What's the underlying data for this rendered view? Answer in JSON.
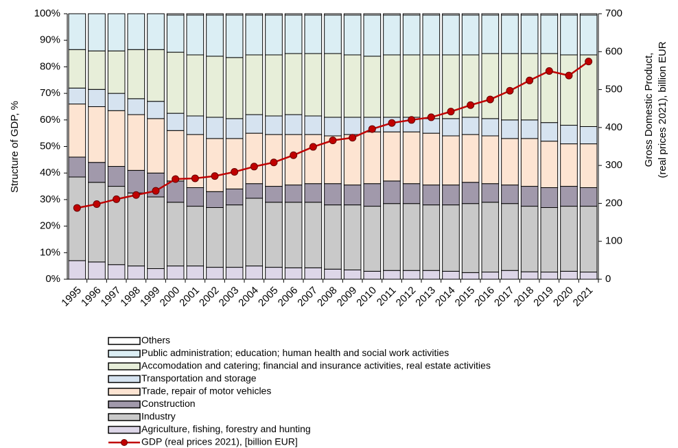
{
  "chart_data": {
    "type": "bar",
    "stacked": true,
    "ylabel": "Structure of GDP, %",
    "y2label": [
      "Gross Domestic Product,",
      "(real prices 2021), billion EUR"
    ],
    "categories": [
      "1995",
      "1996",
      "1997",
      "1998",
      "1999",
      "2000",
      "2001",
      "2002",
      "2003",
      "2004",
      "2005",
      "2006",
      "2007",
      "2008",
      "2009",
      "2010",
      "2011",
      "2012",
      "2013",
      "2014",
      "2015",
      "2016",
      "2017",
      "2018",
      "2019",
      "2020",
      "2021"
    ],
    "ylim": [
      0,
      100
    ],
    "yticks": [
      {
        "value": 0,
        "label": "0%"
      },
      {
        "value": 10,
        "label": "10%"
      },
      {
        "value": 20,
        "label": "20%"
      },
      {
        "value": 30,
        "label": "30%"
      },
      {
        "value": 40,
        "label": "40%"
      },
      {
        "value": 50,
        "label": "50%"
      },
      {
        "value": 60,
        "label": "60%"
      },
      {
        "value": 70,
        "label": "70%"
      },
      {
        "value": 80,
        "label": "80%"
      },
      {
        "value": 90,
        "label": "90%"
      },
      {
        "value": 100,
        "label": "100%"
      }
    ],
    "y2lim": [
      0,
      700
    ],
    "y2ticks": [
      0,
      100,
      200,
      300,
      400,
      500,
      600,
      700
    ],
    "series": [
      {
        "name": "Agriculture, fishing, forestry and hunting",
        "color": "#ddd6e8",
        "values": [
          7,
          6.5,
          5.5,
          5,
          4,
          5,
          5,
          4.5,
          4.5,
          5,
          4.5,
          4.3,
          4.3,
          3.8,
          3.5,
          3,
          3.3,
          3.3,
          3.3,
          3,
          2.5,
          2.7,
          3.3,
          2.8,
          2.7,
          3,
          2.7
        ]
      },
      {
        "name": "Industry",
        "color": "#c9c9c9",
        "values": [
          31.5,
          30,
          29.5,
          27.5,
          27,
          24,
          22.5,
          22.5,
          23.5,
          25.5,
          24.5,
          24.7,
          24.7,
          24.2,
          24.5,
          24.5,
          25.2,
          25.2,
          24.7,
          25,
          26,
          26.3,
          25.2,
          24.7,
          24.3,
          24.5,
          24.8
        ]
      },
      {
        "name": "Construction",
        "color": "#a199ab",
        "values": [
          7.5,
          7.5,
          7.5,
          8.5,
          9,
          8,
          7,
          6,
          6,
          5.5,
          6,
          6.5,
          7,
          8,
          7.5,
          8.5,
          8.5,
          7.5,
          7.5,
          7.5,
          8,
          7,
          7,
          7.5,
          7.5,
          7.5,
          7
        ]
      },
      {
        "name": "Trade, repair of motor vehicles",
        "color": "#fde4d2",
        "values": [
          20,
          21,
          21,
          21,
          20.5,
          19,
          20,
          20,
          19,
          19,
          19.5,
          19,
          18.5,
          18,
          19,
          19.5,
          18.5,
          19.5,
          19.5,
          18.5,
          18,
          18,
          17.5,
          18,
          17.5,
          16,
          16.5
        ]
      },
      {
        "name": "Transportation and storage",
        "color": "#d6e3f0",
        "values": [
          6,
          6.5,
          6.5,
          6,
          6.5,
          6.5,
          7,
          8,
          7.5,
          7,
          7,
          7.5,
          7,
          7,
          6.5,
          5.5,
          5.5,
          5.5,
          5.5,
          6.5,
          6.5,
          6.5,
          7,
          7,
          7,
          7,
          6.5
        ]
      },
      {
        "name": "Accomodation and catering; financial and insurance activities, real estate activities",
        "color": "#e7eed9",
        "values": [
          14.5,
          14.5,
          16,
          18.5,
          19.5,
          23,
          23,
          23,
          23,
          22.5,
          23,
          23,
          23.5,
          24,
          23.5,
          23,
          23.5,
          23.5,
          24,
          24,
          23.5,
          24.5,
          25,
          25,
          26,
          26.5,
          27
        ]
      },
      {
        "name": "Public administration; education; human health and social work activities",
        "color": "#dbeef4",
        "values": [
          13.5,
          14,
          14,
          13.5,
          13.5,
          14,
          15,
          15.5,
          16,
          15,
          15,
          14.5,
          14.5,
          14.5,
          15,
          15.5,
          15,
          15,
          15,
          15,
          15,
          14.5,
          14.5,
          14.5,
          14.5,
          15,
          15
        ]
      },
      {
        "name": "Others",
        "color": "#ffffff",
        "values": [
          0,
          0,
          0,
          0,
          0,
          0.5,
          0.5,
          0.5,
          0.5,
          0.5,
          0.5,
          0.5,
          0.5,
          0.5,
          0.5,
          0.5,
          0.5,
          0.5,
          0.5,
          0.5,
          0.5,
          0.5,
          0.5,
          0.5,
          0.5,
          0.5,
          0.5
        ]
      },
      {
        "name": "GDP (real prices 2021),  [billion EUR]",
        "color": "#c00000",
        "type": "line",
        "axis": "y2",
        "values": [
          188,
          198,
          211,
          222,
          233,
          264,
          266,
          272,
          283,
          297,
          308,
          327,
          349,
          366,
          373,
          396,
          412,
          420,
          427,
          442,
          459,
          474,
          497,
          524,
          549,
          537,
          574
        ]
      }
    ]
  }
}
